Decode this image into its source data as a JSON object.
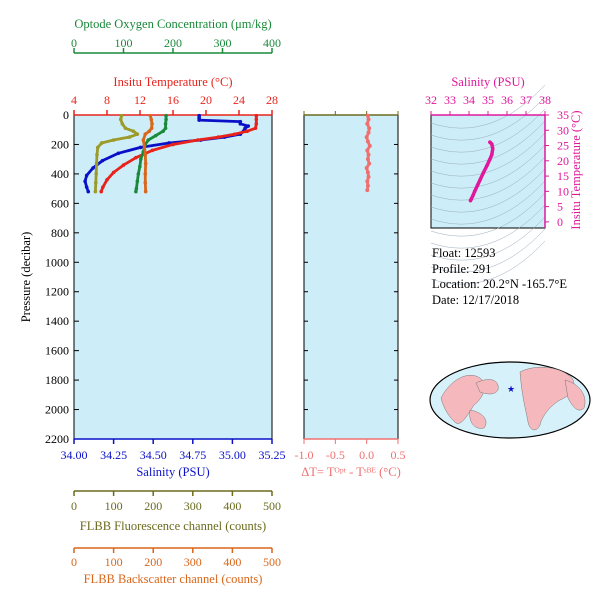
{
  "float_info": {
    "float_line": "Float:  12593",
    "profile_line": "Profile:  291",
    "location_line": "Location:  20.2°N  -165.7°E",
    "date_line": "Date:  12/17/2018"
  },
  "colors": {
    "panel_bg": "#cdeef8",
    "oxygen": "#1a8a3a",
    "temperature": "#e8231b",
    "salinity": "#0a10c8",
    "fluorescence": "#9c9a2a",
    "backscatter": "#d9661a",
    "delta_t": "#f07070",
    "ts": "#e0189c",
    "axis_olive": "#6b6b1e"
  },
  "chart_data": [
    {
      "type": "line",
      "y_axis": {
        "label": "Pressure (decibar)",
        "range": [
          2200,
          0
        ],
        "ticks": [
          "0",
          "200",
          "400",
          "600",
          "800",
          "1000",
          "1200",
          "1400",
          "1600",
          "1800",
          "2000",
          "2200"
        ]
      },
      "x_axes": {
        "oxygen": {
          "label": "Optode Oxygen Concentration (μm/kg)",
          "range": [
            0,
            400
          ],
          "ticks": [
            "0",
            "100",
            "200",
            "300",
            "400"
          ]
        },
        "temperature": {
          "label": "Insitu Temperature (°C)",
          "range": [
            4,
            28
          ],
          "ticks": [
            "4",
            "8",
            "12",
            "16",
            "20",
            "24",
            "28"
          ]
        },
        "salinity": {
          "label": "Salinity (PSU)",
          "range": [
            34.0,
            35.25
          ],
          "ticks": [
            "34.00",
            "34.25",
            "34.50",
            "34.75",
            "35.00",
            "35.25"
          ]
        },
        "fluorescence": {
          "label": "FLBB Fluorescence channel (counts)",
          "range": [
            0,
            500
          ],
          "ticks": [
            "0",
            "100",
            "200",
            "300",
            "400",
            "500"
          ]
        },
        "backscatter": {
          "label": "FLBB Backscatter channel (counts)",
          "range": [
            0,
            500
          ],
          "ticks": [
            "0",
            "100",
            "200",
            "300",
            "400",
            "500"
          ]
        }
      },
      "series": [
        {
          "key": "salinity",
          "points": [
            [
              34.79,
              5
            ],
            [
              34.79,
              15
            ],
            [
              34.79,
              25
            ],
            [
              34.79,
              35
            ],
            [
              35.05,
              45
            ],
            [
              35.05,
              60
            ],
            [
              35.1,
              75
            ],
            [
              35.08,
              90
            ],
            [
              35.07,
              110
            ],
            [
              35.05,
              130
            ],
            [
              34.95,
              150
            ],
            [
              34.8,
              170
            ],
            [
              34.6,
              190
            ],
            [
              34.42,
              220
            ],
            [
              34.28,
              260
            ],
            [
              34.18,
              310
            ],
            [
              34.12,
              360
            ],
            [
              34.08,
              410
            ],
            [
              34.07,
              450
            ],
            [
              34.08,
              490
            ],
            [
              34.09,
              520
            ]
          ]
        },
        {
          "key": "temperature",
          "points": [
            [
              26.1,
              5
            ],
            [
              26.1,
              30
            ],
            [
              26.1,
              60
            ],
            [
              26.0,
              90
            ],
            [
              25.0,
              110
            ],
            [
              23.5,
              130
            ],
            [
              21.5,
              150
            ],
            [
              19.0,
              170
            ],
            [
              16.0,
              200
            ],
            [
              13.5,
              240
            ],
            [
              11.5,
              290
            ],
            [
              10.0,
              340
            ],
            [
              8.8,
              390
            ],
            [
              8.0,
              440
            ],
            [
              7.5,
              490
            ],
            [
              7.3,
              520
            ]
          ]
        },
        {
          "key": "oxygen",
          "points": [
            [
              186,
              5
            ],
            [
              186,
              30
            ],
            [
              185,
              60
            ],
            [
              185,
              90
            ],
            [
              180,
              110
            ],
            [
              165,
              140
            ],
            [
              150,
              170
            ],
            [
              144,
              200
            ],
            [
              140,
              250
            ],
            [
              135,
              300
            ],
            [
              133,
              350
            ],
            [
              130,
              400
            ],
            [
              128,
              450
            ],
            [
              126,
              500
            ],
            [
              125,
              520
            ]
          ]
        },
        {
          "key": "fluorescence",
          "points": [
            [
              120,
              5
            ],
            [
              118,
              30
            ],
            [
              122,
              60
            ],
            [
              130,
              90
            ],
            [
              150,
              110
            ],
            [
              160,
              130
            ],
            [
              140,
              150
            ],
            [
              100,
              170
            ],
            [
              70,
              190
            ],
            [
              60,
              220
            ],
            [
              58,
              270
            ],
            [
              57,
              330
            ],
            [
              56,
              400
            ],
            [
              55,
              460
            ],
            [
              54,
              520
            ]
          ]
        },
        {
          "key": "backscatter",
          "points": [
            [
              193,
              5
            ],
            [
              195,
              30
            ],
            [
              197,
              60
            ],
            [
              196,
              90
            ],
            [
              190,
              110
            ],
            [
              180,
              130
            ],
            [
              175,
              170
            ],
            [
              178,
              220
            ],
            [
              180,
              270
            ],
            [
              181,
              330
            ],
            [
              180,
              400
            ],
            [
              180,
              460
            ],
            [
              181,
              520
            ]
          ]
        }
      ]
    },
    {
      "type": "line",
      "x_axis": {
        "label": "ΔT= Tᴼᵖᵗ - Tˢᴮᴱ (°C)",
        "range": [
          -1.0,
          0.5
        ],
        "ticks": [
          "-1.0",
          "-0.5",
          "0.0",
          "0.5"
        ]
      },
      "y_axis": {
        "range": [
          2200,
          0
        ]
      },
      "series": [
        {
          "key": "delta_t",
          "points": [
            [
              0.02,
              5
            ],
            [
              0.03,
              30
            ],
            [
              0.01,
              60
            ],
            [
              0.04,
              90
            ],
            [
              0.03,
              120
            ],
            [
              0.0,
              150
            ],
            [
              0.02,
              180
            ],
            [
              0.05,
              210
            ],
            [
              0.01,
              240
            ],
            [
              0.03,
              270
            ],
            [
              0.02,
              300
            ],
            [
              0.04,
              330
            ],
            [
              0.0,
              360
            ],
            [
              0.02,
              390
            ],
            [
              0.03,
              420
            ],
            [
              0.01,
              450
            ],
            [
              0.02,
              480
            ],
            [
              0.01,
              510
            ]
          ]
        }
      ]
    },
    {
      "type": "scatter",
      "x_axis": {
        "label": "Salinity (PSU)",
        "range": [
          32,
          38
        ],
        "ticks": [
          "32",
          "33",
          "34",
          "35",
          "36",
          "37",
          "38"
        ]
      },
      "y_axis": {
        "label": "Insitu Temperature (°C)",
        "range": [
          -2,
          35
        ],
        "ticks": [
          "0",
          "5",
          "10",
          "15",
          "20",
          "25",
          "30",
          "35"
        ]
      },
      "series": [
        {
          "key": "ts",
          "points": [
            [
              35.1,
              26.1
            ],
            [
              35.2,
              25.5
            ],
            [
              35.25,
              24.0
            ],
            [
              35.2,
              22.0
            ],
            [
              35.1,
              20.5
            ],
            [
              34.95,
              18.5
            ],
            [
              34.75,
              16.0
            ],
            [
              34.6,
              14.0
            ],
            [
              34.45,
              12.0
            ],
            [
              34.3,
              10.0
            ],
            [
              34.2,
              8.5
            ],
            [
              34.12,
              7.5
            ],
            [
              34.08,
              7.0
            ]
          ]
        }
      ]
    }
  ]
}
